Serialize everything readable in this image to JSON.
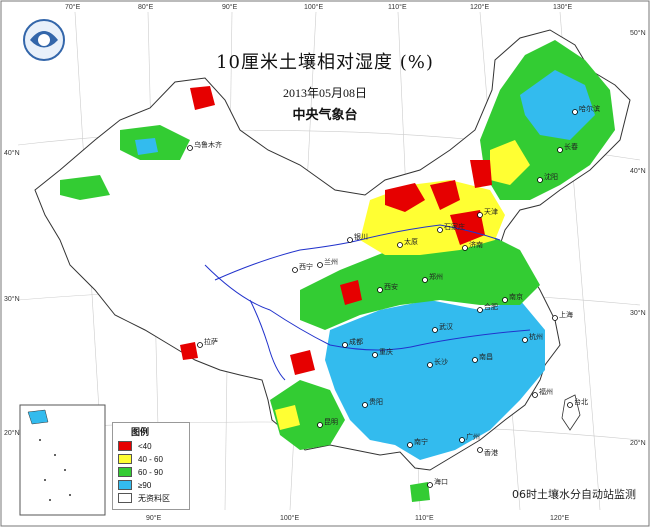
{
  "title": "10厘米土壤相对湿度 (%)",
  "date": "2013年05月08日",
  "agency": "中央气象台",
  "footer": "06时土壤水分自动站监测",
  "legend": {
    "title": "图例",
    "items": [
      {
        "label": "<40",
        "color": "#e60000"
      },
      {
        "label": "40 - 60",
        "color": "#ffff33"
      },
      {
        "label": "60 - 90",
        "color": "#33cc33"
      },
      {
        "label": "≥90",
        "color": "#33bbee"
      },
      {
        "label": "无资料区",
        "color": "#ffffff"
      }
    ]
  },
  "ticks": {
    "top": [
      "70°E",
      "80°E",
      "90°E",
      "100°E",
      "110°E",
      "120°E",
      "130°E"
    ],
    "bottom": [
      "90°E",
      "100°E",
      "110°E",
      "120°E"
    ],
    "left": [
      "40°N",
      "30°N",
      "20°N"
    ],
    "right": [
      "50°N",
      "40°N",
      "30°N",
      "20°N"
    ]
  },
  "cities": [
    "乌鲁木齐",
    "哈尔滨",
    "长春",
    "沈阳",
    "天津",
    "济南",
    "成都",
    "拉萨",
    "上海",
    "台北",
    "福州",
    "广州",
    "香港",
    "海口",
    "南宁",
    "贵阳",
    "昆明",
    "南京",
    "武汉",
    "长沙",
    "南昌",
    "合肥",
    "西安",
    "郑州",
    "石家庄",
    "太原",
    "银川",
    "兰州",
    "西宁",
    "重庆",
    "杭州"
  ],
  "colors": {
    "dry": "#e60000",
    "moderate": "#ffff33",
    "normal": "#33cc33",
    "wet": "#33bbee",
    "no_data": "#ffffff",
    "border": "#333333",
    "river": "#2233cc",
    "sea": "#ffffff"
  }
}
